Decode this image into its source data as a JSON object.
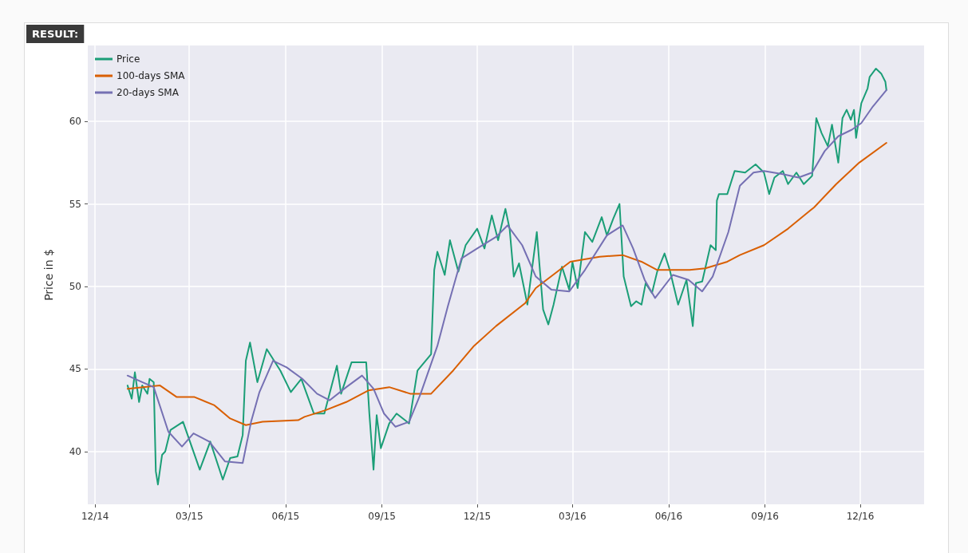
{
  "chart_data": {
    "type": "line",
    "ylabel": "Price in $",
    "annotations": [
      "RESULT:"
    ],
    "xlim": [
      "2014-11-24",
      "2017-01-31"
    ],
    "ylim": [
      36.8,
      64.6
    ],
    "yticks": [
      40,
      45,
      50,
      55,
      60
    ],
    "xticks": [
      {
        "value": "2014-12-01",
        "label": "12/14"
      },
      {
        "value": "2015-03-01",
        "label": "03/15"
      },
      {
        "value": "2015-06-01",
        "label": "06/15"
      },
      {
        "value": "2015-09-01",
        "label": "09/15"
      },
      {
        "value": "2015-12-01",
        "label": "12/15"
      },
      {
        "value": "2016-03-01",
        "label": "03/16"
      },
      {
        "value": "2016-06-01",
        "label": "06/16"
      },
      {
        "value": "2016-09-01",
        "label": "09/16"
      },
      {
        "value": "2016-12-01",
        "label": "12/16"
      }
    ],
    "grid": true,
    "legend": "top left",
    "marker": "none",
    "line_style": "solid",
    "series": [
      {
        "name": "Price",
        "color": "#1b9e77",
        "x": [
          "2015-01-01",
          "2015-01-05",
          "2015-01-08",
          "2015-01-12",
          "2015-01-15",
          "2015-01-20",
          "2015-01-22",
          "2015-01-26",
          "2015-01-28",
          "2015-01-30",
          "2015-02-03",
          "2015-02-06",
          "2015-02-11",
          "2015-02-23",
          "2015-03-11",
          "2015-03-21",
          "2015-04-02",
          "2015-04-09",
          "2015-04-16",
          "2015-04-21",
          "2015-04-24",
          "2015-04-28",
          "2015-05-05",
          "2015-05-14",
          "2015-05-27",
          "2015-06-06",
          "2015-06-16",
          "2015-06-28",
          "2015-07-08",
          "2015-07-20",
          "2015-07-24",
          "2015-08-03",
          "2015-08-17",
          "2015-08-20",
          "2015-08-24",
          "2015-08-27",
          "2015-08-31",
          "2015-09-08",
          "2015-09-15",
          "2015-09-27",
          "2015-10-05",
          "2015-10-18",
          "2015-10-21",
          "2015-10-24",
          "2015-10-31",
          "2015-11-05",
          "2015-11-13",
          "2015-11-20",
          "2015-12-01",
          "2015-12-08",
          "2015-12-15",
          "2015-12-21",
          "2015-12-28",
          "2016-01-01",
          "2016-01-05",
          "2016-01-10",
          "2016-01-18",
          "2016-01-27",
          "2016-02-02",
          "2016-02-07",
          "2016-02-12",
          "2016-02-20",
          "2016-02-27",
          "2016-03-01",
          "2016-03-06",
          "2016-03-13",
          "2016-03-20",
          "2016-03-29",
          "2016-04-03",
          "2016-04-09",
          "2016-04-15",
          "2016-04-19",
          "2016-04-26",
          "2016-05-01",
          "2016-05-06",
          "2016-05-10",
          "2016-05-16",
          "2016-05-21",
          "2016-05-28",
          "2016-06-02",
          "2016-06-10",
          "2016-06-18",
          "2016-06-24",
          "2016-06-27",
          "2016-07-03",
          "2016-07-11",
          "2016-07-16",
          "2016-07-17",
          "2016-07-19",
          "2016-07-27",
          "2016-08-03",
          "2016-08-13",
          "2016-08-23",
          "2016-08-31",
          "2016-09-05",
          "2016-09-10",
          "2016-09-18",
          "2016-09-23",
          "2016-10-01",
          "2016-10-08",
          "2016-10-16",
          "2016-10-20",
          "2016-10-25",
          "2016-10-31",
          "2016-11-04",
          "2016-11-10",
          "2016-11-14",
          "2016-11-18",
          "2016-11-22",
          "2016-11-25",
          "2016-11-27",
          "2016-12-02",
          "2016-12-08",
          "2016-12-10",
          "2016-12-16",
          "2016-12-21",
          "2016-12-25",
          "2016-12-26"
        ],
        "values": [
          44.0,
          43.2,
          44.8,
          43.0,
          44.0,
          43.5,
          44.4,
          44.2,
          38.8,
          38.0,
          39.8,
          40.0,
          41.3,
          41.8,
          38.9,
          40.6,
          38.3,
          39.6,
          39.7,
          41.0,
          45.5,
          46.6,
          44.2,
          46.2,
          44.9,
          43.6,
          44.4,
          42.3,
          42.3,
          45.2,
          43.5,
          45.4,
          45.4,
          42.3,
          38.9,
          42.2,
          40.2,
          41.7,
          42.3,
          41.7,
          44.9,
          45.9,
          51.0,
          52.1,
          50.7,
          52.8,
          50.9,
          52.5,
          53.5,
          52.3,
          54.3,
          52.8,
          54.7,
          53.5,
          50.6,
          51.4,
          48.9,
          53.3,
          48.6,
          47.7,
          48.9,
          51.2,
          49.8,
          51.5,
          49.9,
          53.3,
          52.7,
          54.2,
          53.1,
          54.1,
          55.0,
          50.6,
          48.8,
          49.1,
          48.9,
          50.2,
          49.6,
          50.9,
          52.0,
          51.0,
          48.9,
          50.4,
          47.6,
          50.2,
          50.3,
          52.5,
          52.2,
          55.2,
          55.6,
          55.6,
          57.0,
          56.9,
          57.4,
          56.9,
          55.6,
          56.6,
          57.0,
          56.2,
          56.9,
          56.2,
          56.7,
          60.2,
          59.3,
          58.5,
          59.8,
          57.5,
          60.2,
          60.7,
          60.1,
          60.7,
          59.0,
          61.1,
          62.0,
          62.7,
          63.2,
          62.9,
          62.4,
          61.9
        ]
      },
      {
        "name": "100-days SMA",
        "color": "#d95f02",
        "x": [
          "2015-01-01",
          "2015-02-01",
          "2015-02-17",
          "2015-03-06",
          "2015-03-25",
          "2015-04-09",
          "2015-04-24",
          "2015-05-10",
          "2015-06-13",
          "2015-06-19",
          "2015-07-09",
          "2015-07-29",
          "2015-08-19",
          "2015-09-08",
          "2015-09-28",
          "2015-10-18",
          "2015-11-08",
          "2015-11-28",
          "2015-12-19",
          "2016-01-16",
          "2016-01-26",
          "2016-02-28",
          "2016-03-27",
          "2016-04-18",
          "2016-05-06",
          "2016-05-21",
          "2016-06-21",
          "2016-07-06",
          "2016-07-27",
          "2016-08-08",
          "2016-08-31",
          "2016-09-23",
          "2016-10-18",
          "2016-11-08",
          "2016-11-30",
          "2016-12-26"
        ],
        "values": [
          43.8,
          44.0,
          43.3,
          43.3,
          42.8,
          42.0,
          41.6,
          41.8,
          41.9,
          42.1,
          42.5,
          43.0,
          43.7,
          43.9,
          43.5,
          43.5,
          44.9,
          46.4,
          47.6,
          49.0,
          49.9,
          51.5,
          51.8,
          51.9,
          51.5,
          51.0,
          51.0,
          51.1,
          51.5,
          51.9,
          52.5,
          53.5,
          54.8,
          56.2,
          57.5,
          58.7
        ]
      },
      {
        "name": "20-days SMA",
        "color": "#7570b3",
        "x": [
          "2015-01-01",
          "2015-01-15",
          "2015-01-26",
          "2015-02-09",
          "2015-02-22",
          "2015-03-05",
          "2015-03-20",
          "2015-04-04",
          "2015-04-21",
          "2015-04-29",
          "2015-05-07",
          "2015-05-20",
          "2015-06-02",
          "2015-06-17",
          "2015-07-01",
          "2015-07-13",
          "2015-07-29",
          "2015-08-13",
          "2015-08-24",
          "2015-09-03",
          "2015-09-14",
          "2015-09-27",
          "2015-10-08",
          "2015-10-24",
          "2015-11-03",
          "2015-11-16",
          "2015-12-01",
          "2015-12-19",
          "2015-12-30",
          "2016-01-13",
          "2016-01-26",
          "2016-02-10",
          "2016-02-27",
          "2016-03-13",
          "2016-04-03",
          "2016-04-18",
          "2016-04-28",
          "2016-05-09",
          "2016-05-19",
          "2016-06-05",
          "2016-06-20",
          "2016-07-03",
          "2016-07-13",
          "2016-07-28",
          "2016-08-08",
          "2016-08-21",
          "2016-08-31",
          "2016-09-18",
          "2016-10-03",
          "2016-10-16",
          "2016-10-28",
          "2016-11-10",
          "2016-11-23",
          "2016-12-02",
          "2016-12-13",
          "2016-12-26"
        ],
        "values": [
          44.6,
          44.2,
          43.9,
          41.2,
          40.3,
          41.1,
          40.6,
          39.4,
          39.3,
          41.8,
          43.6,
          45.5,
          45.1,
          44.4,
          43.5,
          43.1,
          43.9,
          44.6,
          43.8,
          42.3,
          41.5,
          41.8,
          43.5,
          46.4,
          48.8,
          51.7,
          52.3,
          53.0,
          53.7,
          52.5,
          50.6,
          49.8,
          49.7,
          51.0,
          53.1,
          53.7,
          52.3,
          50.4,
          49.3,
          50.7,
          50.4,
          49.7,
          50.6,
          53.3,
          56.1,
          56.9,
          57.0,
          56.8,
          56.6,
          56.9,
          58.2,
          59.1,
          59.5,
          59.9,
          60.9,
          61.9
        ]
      }
    ]
  }
}
